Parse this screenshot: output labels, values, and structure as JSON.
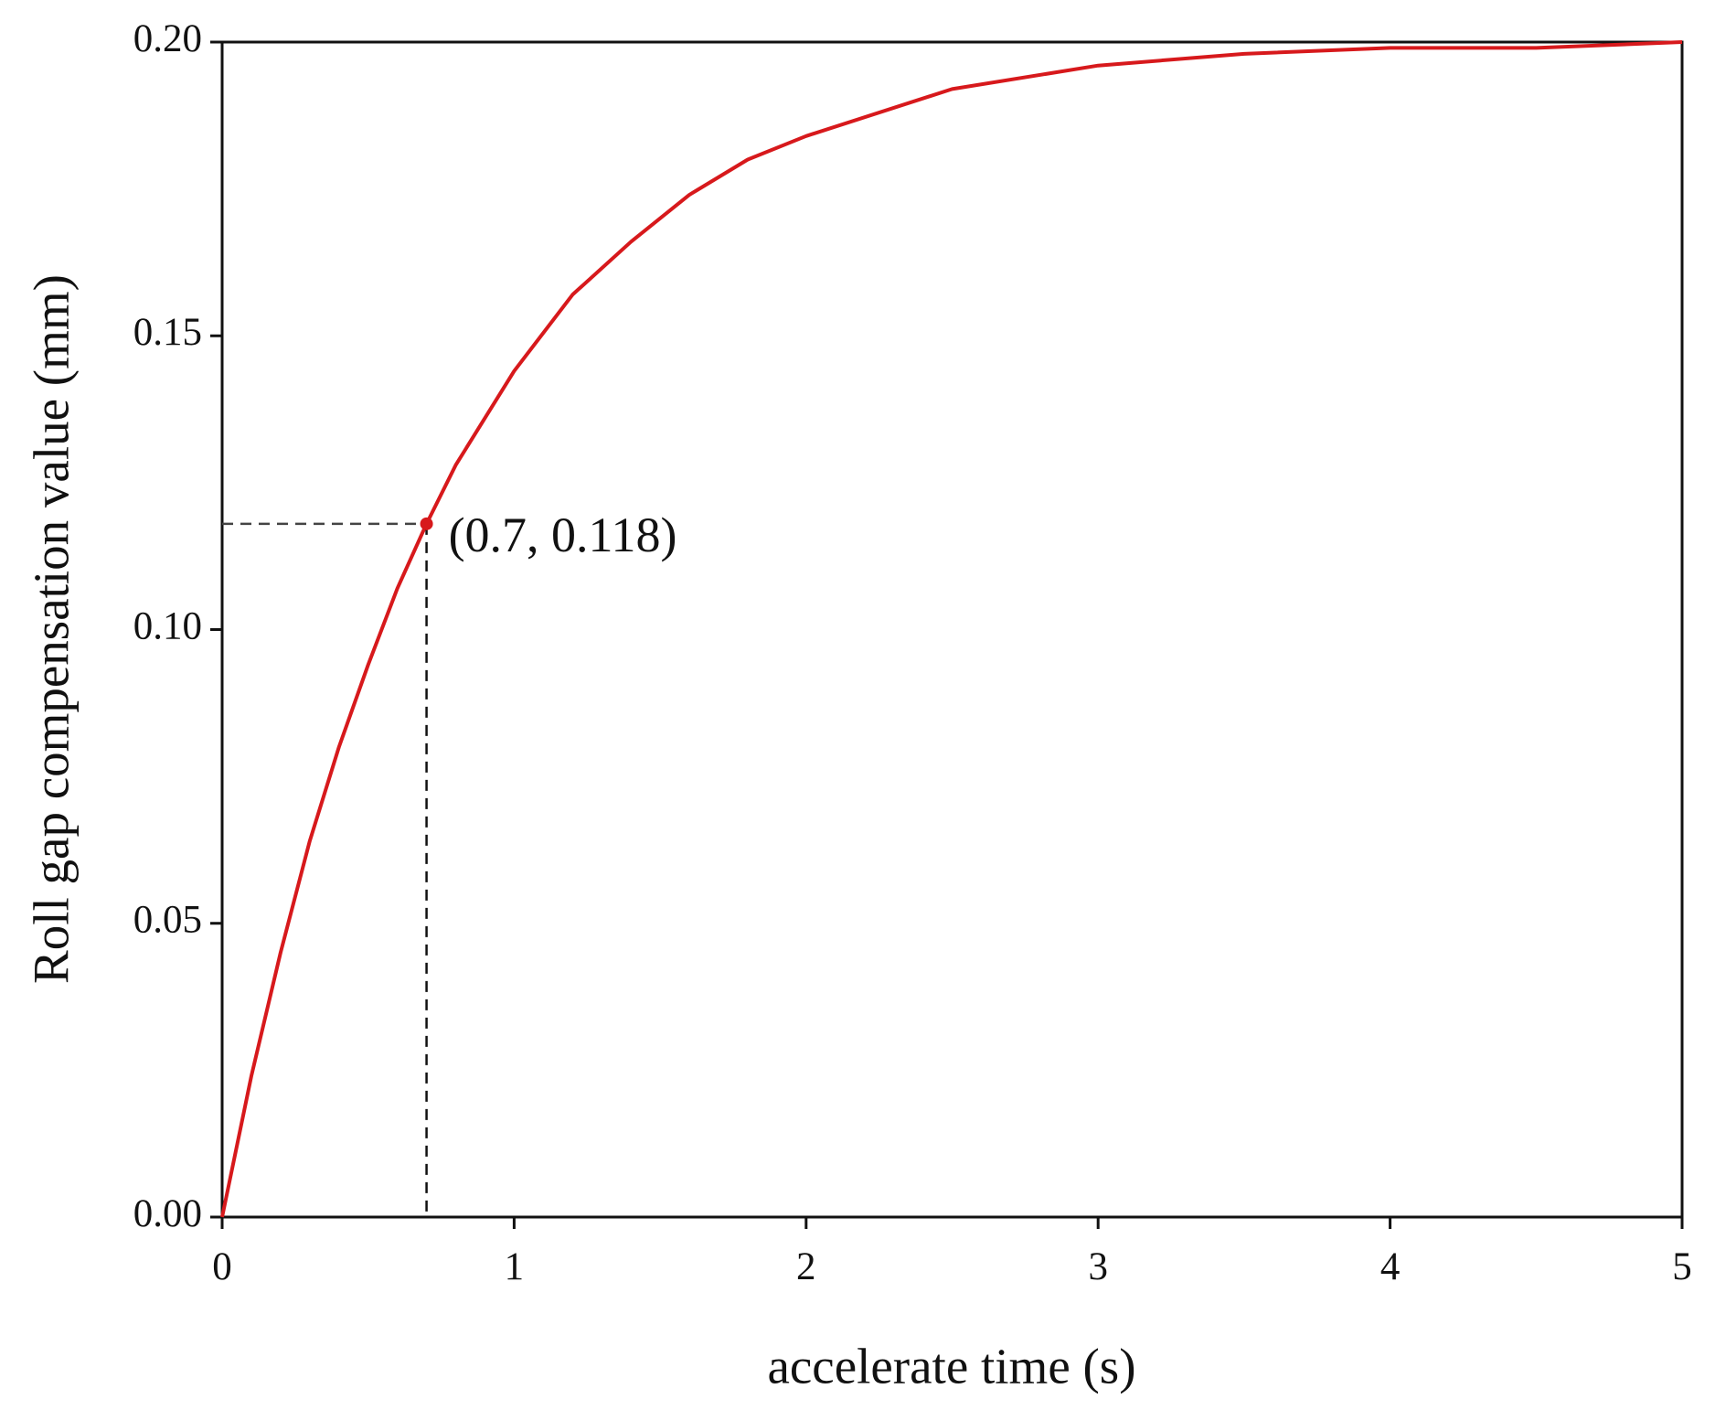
{
  "chart_data": {
    "type": "line",
    "xlabel": "accelerate time (s)",
    "ylabel": "Roll gap compensation value (mm)",
    "x": [
      0,
      0.1,
      0.2,
      0.3,
      0.4,
      0.5,
      0.6,
      0.7,
      0.8,
      0.9,
      1.0,
      1.2,
      1.4,
      1.6,
      1.8,
      2.0,
      2.5,
      3.0,
      3.5,
      4.0,
      4.5,
      5.0
    ],
    "values": [
      0,
      0.024,
      0.045,
      0.064,
      0.08,
      0.094,
      0.107,
      0.118,
      0.128,
      0.136,
      0.144,
      0.157,
      0.166,
      0.174,
      0.18,
      0.184,
      0.192,
      0.196,
      0.198,
      0.199,
      0.199,
      0.2
    ],
    "color": "#d7191c",
    "xlim": [
      0,
      5
    ],
    "xticks": [
      0,
      1,
      2,
      3,
      4,
      5
    ],
    "ylim": [
      0,
      0.2
    ],
    "yticks": [
      {
        "value": 0,
        "label": "0.00"
      },
      {
        "value": 0.05,
        "label": "0.05"
      },
      {
        "value": 0.1,
        "label": "0.10"
      },
      {
        "value": 0.15,
        "label": "0.15"
      },
      {
        "value": 0.2,
        "label": "0.20"
      }
    ],
    "annotation": {
      "text": "(0.7, 0.118)",
      "x": 0.7,
      "y": 0.118
    }
  }
}
